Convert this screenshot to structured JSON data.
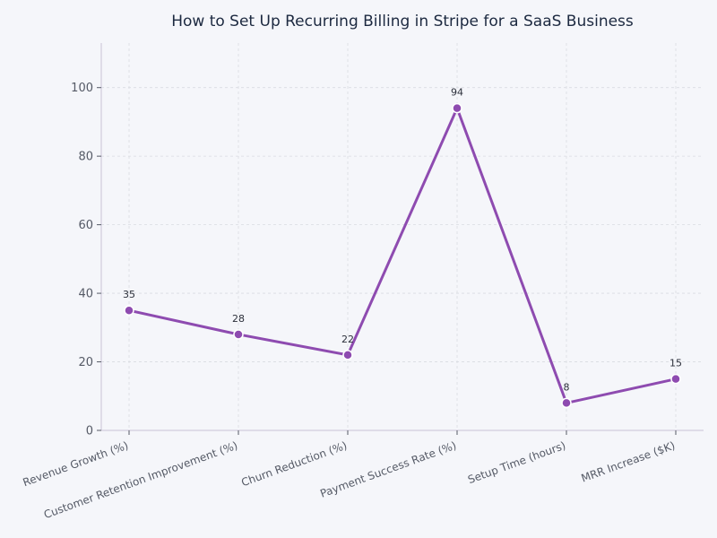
{
  "chart_data": {
    "type": "line",
    "title": "How to Set Up Recurring Billing in Stripe for a SaaS Business",
    "xlabel": "",
    "ylabel": "",
    "categories": [
      "Revenue Growth (%)",
      "Customer Retention Improvement (%)",
      "Churn Reduction (%)",
      "Payment Success Rate (%)",
      "Setup Time (hours)",
      "MRR Increase ($K)"
    ],
    "series": [
      {
        "values": [
          35,
          28,
          22,
          94,
          8,
          15
        ],
        "color": "#8e4bb0"
      }
    ],
    "ylim": [
      0,
      113
    ],
    "yticks": [
      0,
      20,
      40,
      60,
      80,
      100
    ],
    "grid": true,
    "data_labels": true
  }
}
